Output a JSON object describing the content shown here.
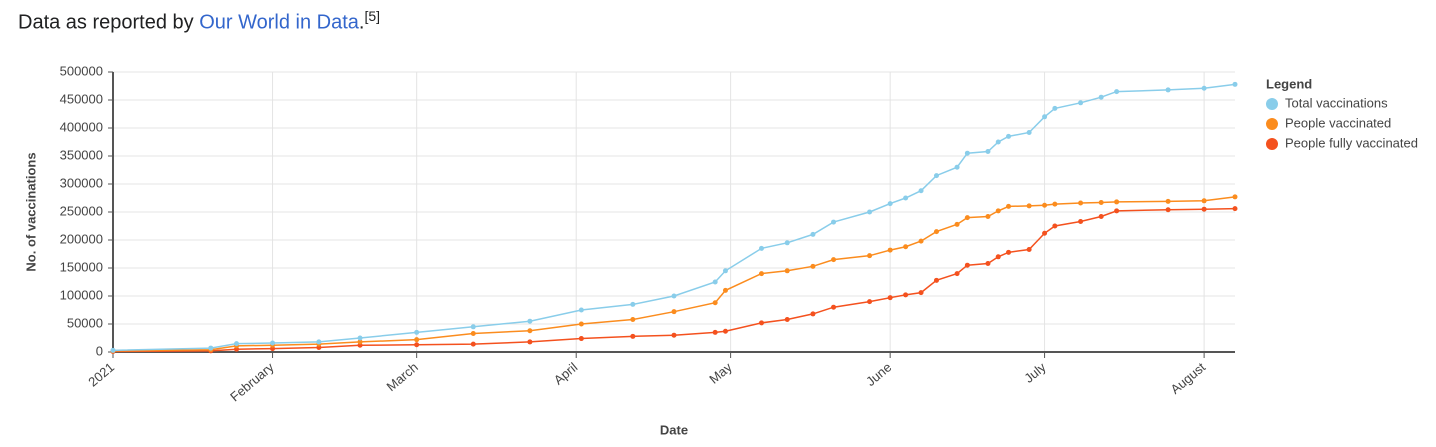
{
  "header": {
    "text": "Data as reported by",
    "link": "Our World in Data",
    "period": ".",
    "ref": "[5]"
  },
  "chart_data": {
    "type": "line",
    "xlabel": "Date",
    "ylabel": "No. of vaccinations",
    "legend_title": "Legend",
    "legend": "right",
    "grid": true,
    "x": [
      0,
      19,
      24,
      31,
      40,
      48,
      59,
      70,
      81,
      91,
      101,
      109,
      117,
      119,
      126,
      131,
      136,
      140,
      147,
      151,
      154,
      157,
      160,
      164,
      166,
      170,
      172,
      174,
      178,
      181,
      183,
      188,
      192,
      195,
      205,
      212,
      218
    ],
    "xlim": [
      0,
      218
    ],
    "xticks": [
      {
        "value": 0,
        "label": "2021"
      },
      {
        "value": 31,
        "label": "February"
      },
      {
        "value": 59,
        "label": "March"
      },
      {
        "value": 90,
        "label": "April"
      },
      {
        "value": 120,
        "label": "May"
      },
      {
        "value": 151,
        "label": "June"
      },
      {
        "value": 181,
        "label": "July"
      },
      {
        "value": 212,
        "label": "August"
      }
    ],
    "ylim": [
      0,
      500000
    ],
    "yticks": [
      0,
      50000,
      100000,
      150000,
      200000,
      250000,
      300000,
      350000,
      400000,
      450000,
      500000
    ],
    "series": [
      {
        "name": "People fully vaccinated",
        "color": "#f4511e",
        "values": [
          1000,
          2000,
          5000,
          6000,
          8000,
          12000,
          13000,
          14000,
          18000,
          24000,
          28000,
          30000,
          35000,
          37000,
          52000,
          58000,
          68000,
          80000,
          90000,
          97000,
          102000,
          106000,
          128000,
          140000,
          155000,
          158000,
          170000,
          178000,
          183000,
          212000,
          225000,
          233000,
          242000,
          252000,
          254000,
          255000,
          256000
        ]
      },
      {
        "name": "People vaccinated",
        "color": "#fb8c1e",
        "values": [
          2000,
          4000,
          11000,
          12000,
          14000,
          18000,
          22000,
          33000,
          38000,
          50000,
          58000,
          72000,
          88000,
          110000,
          140000,
          145000,
          153000,
          165000,
          172000,
          182000,
          188000,
          198000,
          215000,
          228000,
          240000,
          242000,
          252000,
          260000,
          261000,
          262000,
          264000,
          266000,
          267000,
          268000,
          269000,
          270000,
          277000
        ]
      },
      {
        "name": "Total vaccinations",
        "color": "#89cdea",
        "values": [
          3000,
          7000,
          15000,
          16000,
          18000,
          25000,
          35000,
          45000,
          55000,
          75000,
          85000,
          100000,
          125000,
          145000,
          185000,
          195000,
          210000,
          232000,
          250000,
          265000,
          275000,
          288000,
          315000,
          330000,
          355000,
          358000,
          375000,
          385000,
          392000,
          420000,
          435000,
          445000,
          455000,
          465000,
          468000,
          471000,
          478000
        ]
      }
    ]
  }
}
